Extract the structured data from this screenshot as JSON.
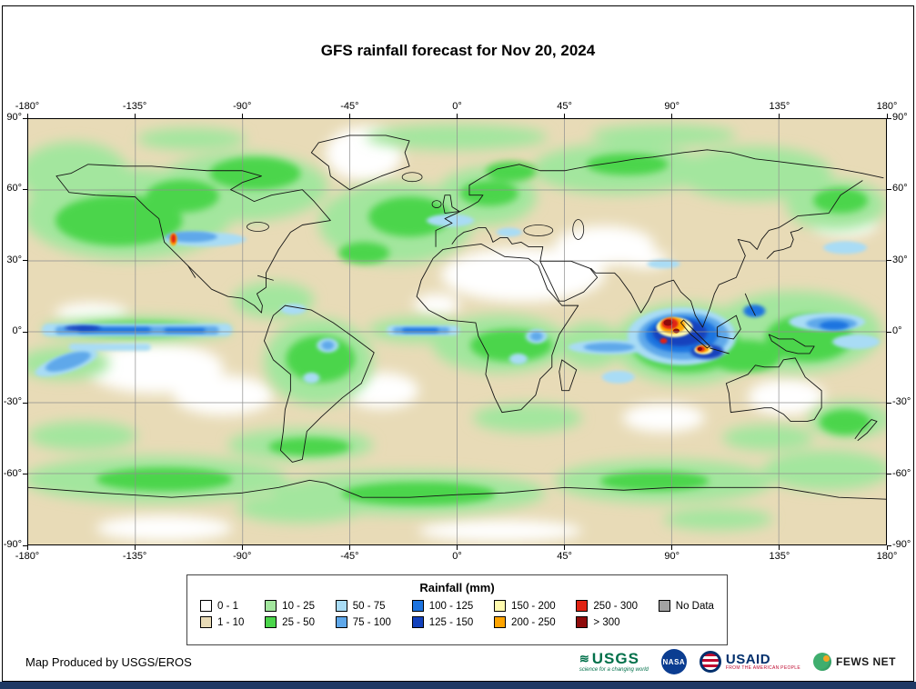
{
  "page": {
    "title": "GFS rainfall forecast for Nov 20, 2024",
    "footer_text": "Map Produced by USGS/EROS",
    "bottom_bar_color": "#1F3864"
  },
  "map": {
    "projection": "equirectangular",
    "lon_ticks": [
      "-180°",
      "-135°",
      "-90°",
      "-45°",
      "0°",
      "45°",
      "90°",
      "135°",
      "180°"
    ],
    "lat_ticks": [
      "90°",
      "60°",
      "30°",
      "0°",
      "-30°",
      "-60°",
      "-90°"
    ]
  },
  "legend": {
    "title": "Rainfall (mm)",
    "entries": [
      {
        "label": "0 - 1",
        "color": "#FFFFFF"
      },
      {
        "label": "1 - 10",
        "color": "#E8DBB7"
      },
      {
        "label": "10 - 25",
        "color": "#A3E69E"
      },
      {
        "label": "25 - 50",
        "color": "#4BD54B"
      },
      {
        "label": "50 - 75",
        "color": "#A9DCF5"
      },
      {
        "label": "75 - 100",
        "color": "#5FA8EA"
      },
      {
        "label": "100 - 125",
        "color": "#1D74E0"
      },
      {
        "label": "125 - 150",
        "color": "#1342BD"
      },
      {
        "label": "150 - 200",
        "color": "#FFFAAE"
      },
      {
        "label": "200 - 250",
        "color": "#FFA400"
      },
      {
        "label": "250 - 300",
        "color": "#E02313"
      },
      {
        "label": "> 300",
        "color": "#8E0B0B"
      },
      {
        "label": "No Data",
        "color": "#A3A3A3"
      }
    ]
  },
  "logos": {
    "usgs": {
      "name": "USGS",
      "tagline": "science for a changing world"
    },
    "nasa": {
      "name": "NASA"
    },
    "usaid": {
      "name": "USAID",
      "tagline": "FROM THE AMERICAN PEOPLE"
    },
    "fews": {
      "name": "FEWS NET"
    }
  }
}
